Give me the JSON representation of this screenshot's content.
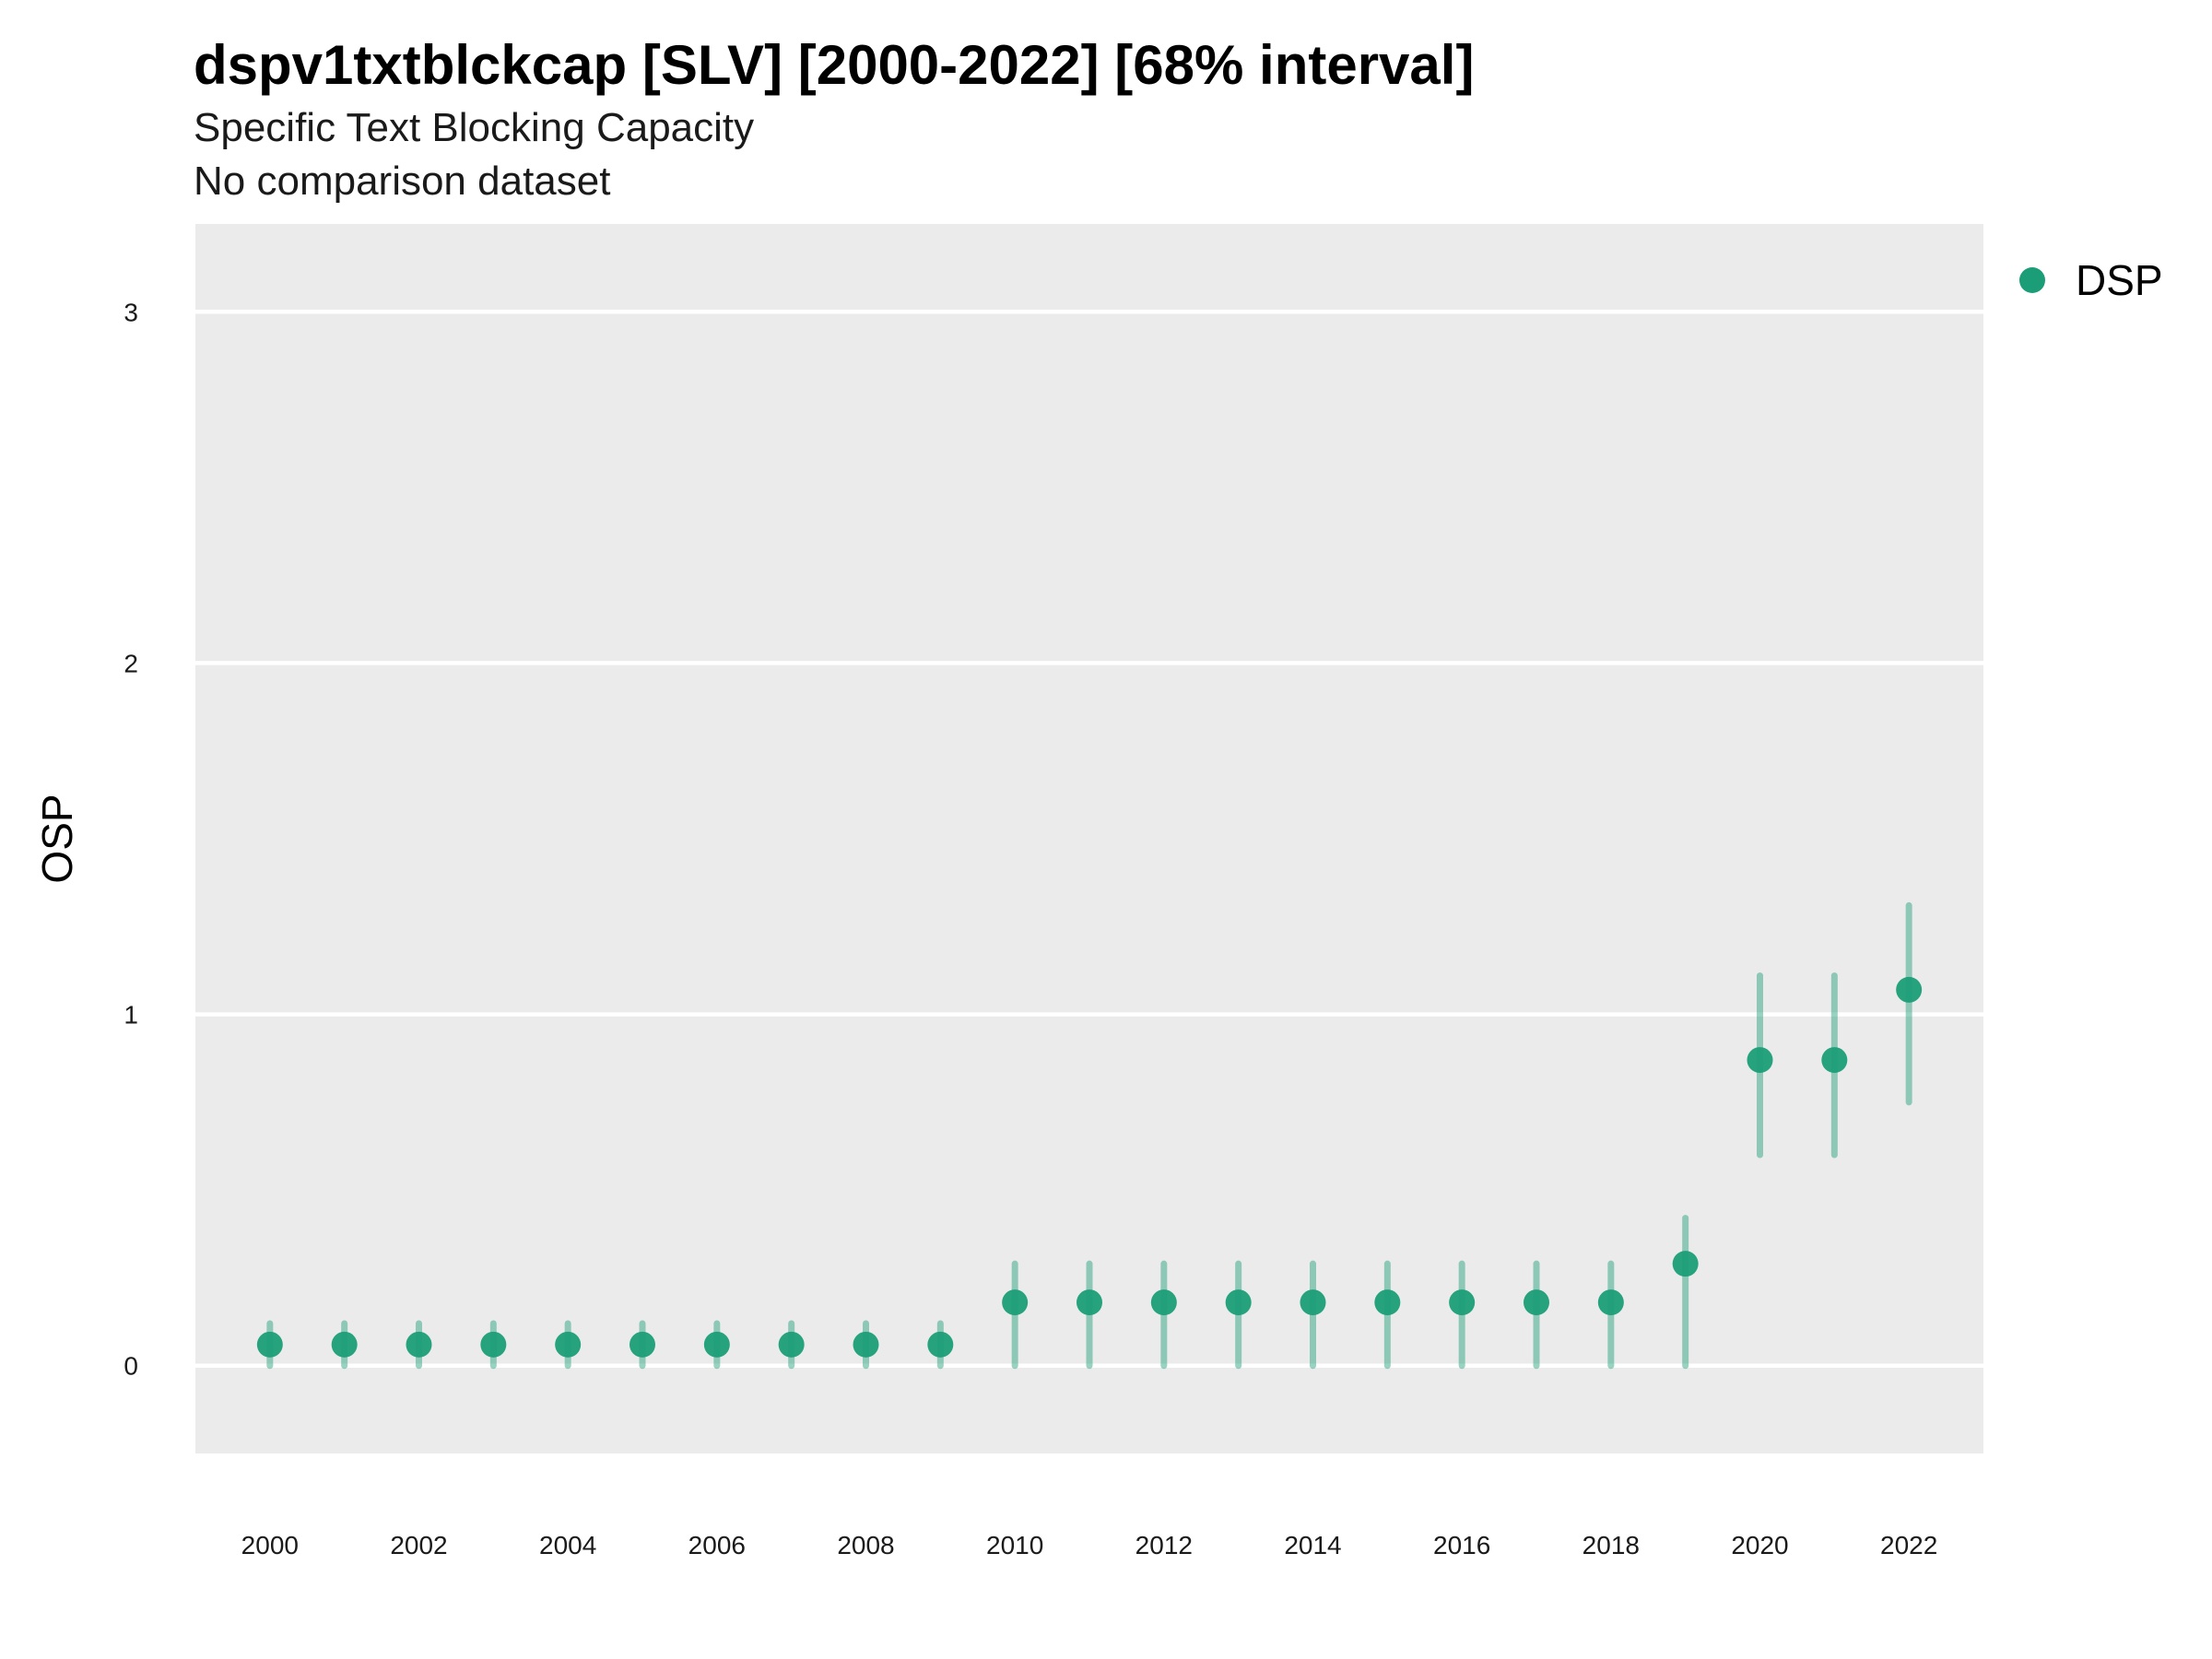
{
  "chart_data": {
    "type": "scatter",
    "title": "dspv1txtblckcap [SLV] [2000-2022] [68% interval]",
    "subtitle": "Specific Text Blocking Capacity",
    "subtitle2": "No comparison dataset",
    "xlabel": "",
    "ylabel": "OSP",
    "xlim": [
      1999.0,
      2023.0
    ],
    "ylim": [
      -0.25,
      3.25
    ],
    "x_ticks": [
      2000,
      2002,
      2004,
      2006,
      2008,
      2010,
      2012,
      2014,
      2016,
      2018,
      2020,
      2022
    ],
    "y_ticks": [
      0,
      1,
      2,
      3
    ],
    "grid": true,
    "legend_position": "right",
    "series": [
      {
        "name": "DSP",
        "color": "#1b9e77",
        "points": [
          {
            "x": 2000,
            "y": 0.06,
            "lo": 0.0,
            "hi": 0.12
          },
          {
            "x": 2001,
            "y": 0.06,
            "lo": 0.0,
            "hi": 0.12
          },
          {
            "x": 2002,
            "y": 0.06,
            "lo": 0.0,
            "hi": 0.12
          },
          {
            "x": 2003,
            "y": 0.06,
            "lo": 0.0,
            "hi": 0.12
          },
          {
            "x": 2004,
            "y": 0.06,
            "lo": 0.0,
            "hi": 0.12
          },
          {
            "x": 2005,
            "y": 0.06,
            "lo": 0.0,
            "hi": 0.12
          },
          {
            "x": 2006,
            "y": 0.06,
            "lo": 0.0,
            "hi": 0.12
          },
          {
            "x": 2007,
            "y": 0.06,
            "lo": 0.0,
            "hi": 0.12
          },
          {
            "x": 2008,
            "y": 0.06,
            "lo": 0.0,
            "hi": 0.12
          },
          {
            "x": 2009,
            "y": 0.06,
            "lo": 0.0,
            "hi": 0.12
          },
          {
            "x": 2010,
            "y": 0.18,
            "lo": 0.0,
            "hi": 0.29
          },
          {
            "x": 2011,
            "y": 0.18,
            "lo": 0.0,
            "hi": 0.29
          },
          {
            "x": 2012,
            "y": 0.18,
            "lo": 0.0,
            "hi": 0.29
          },
          {
            "x": 2013,
            "y": 0.18,
            "lo": 0.0,
            "hi": 0.29
          },
          {
            "x": 2014,
            "y": 0.18,
            "lo": 0.0,
            "hi": 0.29
          },
          {
            "x": 2015,
            "y": 0.18,
            "lo": 0.0,
            "hi": 0.29
          },
          {
            "x": 2016,
            "y": 0.18,
            "lo": 0.0,
            "hi": 0.29
          },
          {
            "x": 2017,
            "y": 0.18,
            "lo": 0.0,
            "hi": 0.29
          },
          {
            "x": 2018,
            "y": 0.18,
            "lo": 0.0,
            "hi": 0.29
          },
          {
            "x": 2019,
            "y": 0.29,
            "lo": 0.0,
            "hi": 0.42
          },
          {
            "x": 2020,
            "y": 0.87,
            "lo": 0.6,
            "hi": 1.11
          },
          {
            "x": 2021,
            "y": 0.87,
            "lo": 0.6,
            "hi": 1.11
          },
          {
            "x": 2022,
            "y": 1.07,
            "lo": 0.75,
            "hi": 1.31
          }
        ]
      }
    ]
  }
}
